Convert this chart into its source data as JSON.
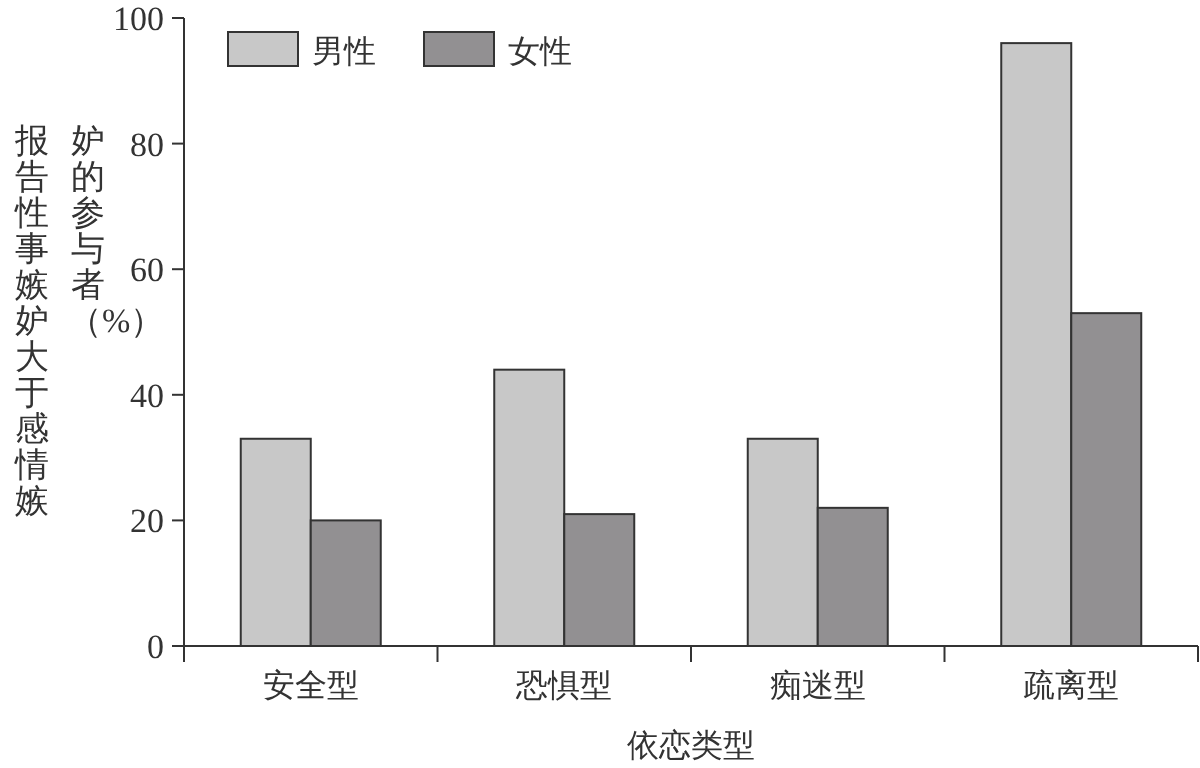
{
  "chart_data": {
    "type": "bar",
    "xlabel": "依恋类型",
    "ylabel": "报告性事嫉妒大于感情嫉妒的参与者（%）",
    "categories": [
      "安全型",
      "恐惧型",
      "痴迷型",
      "疏离型"
    ],
    "series": [
      {
        "name": "男性",
        "color": "#c8c8c8",
        "values": [
          33,
          44,
          33,
          96
        ]
      },
      {
        "name": "女性",
        "color": "#929092",
        "values": [
          20,
          21,
          22,
          53
        ]
      }
    ],
    "ylim": [
      0,
      100
    ],
    "yticks": [
      0,
      20,
      40,
      60,
      80,
      100
    ],
    "legend": "top left",
    "grid": false
  }
}
